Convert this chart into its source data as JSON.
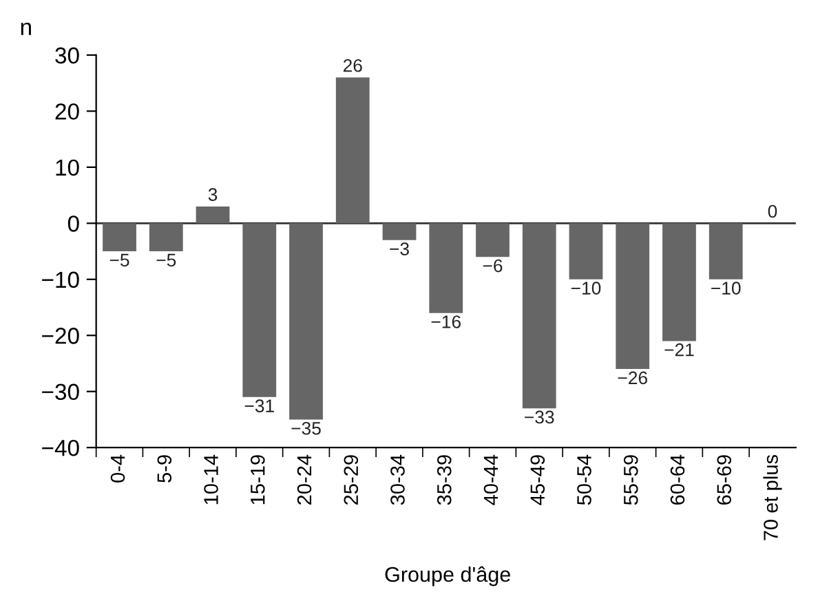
{
  "chart_data": {
    "type": "bar",
    "ylabel": "n",
    "xlabel": "Groupe d'âge",
    "categories": [
      "0-4",
      "5-9",
      "10-14",
      "15-19",
      "20-24",
      "25-29",
      "30-34",
      "35-39",
      "40-44",
      "45-49",
      "50-54",
      "55-59",
      "60-64",
      "65-69",
      "70 et plus"
    ],
    "values": [
      -5,
      -5,
      3,
      -31,
      -35,
      26,
      -3,
      -16,
      -6,
      -33,
      -10,
      -26,
      -21,
      -10,
      0
    ],
    "value_labels": [
      "−5",
      "−5",
      "3",
      "−31",
      "−35",
      "26",
      "−3",
      "−16",
      "−6",
      "−33",
      "−10",
      "−26",
      "−21",
      "−10",
      "0"
    ],
    "color": "#666666",
    "ylim": [
      -40,
      30
    ],
    "yticks": [
      {
        "value": -40,
        "label": "−40"
      },
      {
        "value": -30,
        "label": "−30"
      },
      {
        "value": -20,
        "label": "−20"
      },
      {
        "value": -10,
        "label": "−10"
      },
      0,
      10,
      20,
      30
    ],
    "ref_lines": [
      {
        "axis": "y",
        "value": 0,
        "color": "#333333"
      }
    ],
    "grid": false
  }
}
